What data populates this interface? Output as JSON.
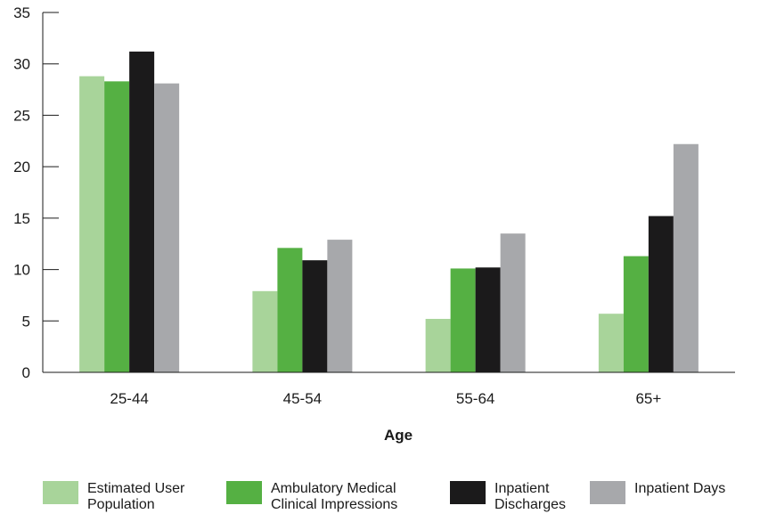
{
  "chart_data": {
    "type": "bar",
    "categories": [
      "25-44",
      "45-54",
      "55-64",
      "65+"
    ],
    "series": [
      {
        "name": "Estimated User Population",
        "color": "#a8d49a",
        "values": [
          28.8,
          7.9,
          5.2,
          5.7
        ]
      },
      {
        "name": "Ambulatory Medical Clinical Impressions",
        "color": "#55b043",
        "values": [
          28.3,
          12.1,
          10.1,
          11.3
        ]
      },
      {
        "name": "Inpatient Discharges",
        "color": "#1b1a1b",
        "values": [
          31.2,
          10.9,
          10.2,
          15.2
        ]
      },
      {
        "name": "Inpatient Days",
        "color": "#a7a8ab",
        "values": [
          28.1,
          12.9,
          13.5,
          22.2
        ]
      }
    ],
    "xlabel": "Age",
    "ylabel": "",
    "ylim": [
      0,
      35
    ],
    "yticks": [
      0,
      5,
      10,
      15,
      20,
      25,
      30,
      35
    ],
    "grid": false,
    "legend_position": "bottom"
  },
  "legend_labels": [
    "Estimated User\nPopulation",
    "Ambulatory Medical\nClinical Impressions",
    "Inpatient\nDischarges",
    "Inpatient Days"
  ]
}
